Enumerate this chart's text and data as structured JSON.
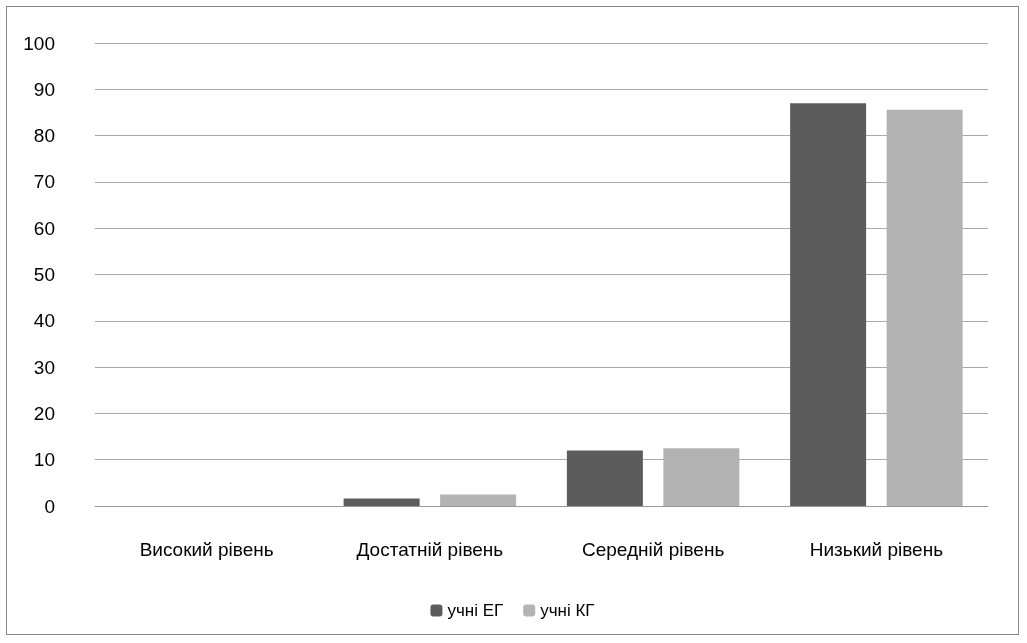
{
  "chart_data": {
    "type": "bar",
    "categories": [
      "Високий рівень",
      "Достатній рівень",
      "Середній рівень",
      "Низький рівень"
    ],
    "series": [
      {
        "name": "учні ЕГ",
        "color": "#5c5c5c",
        "values": [
          0,
          1.6,
          12,
          87
        ]
      },
      {
        "name": "учні КГ",
        "color": "#b3b3b3",
        "values": [
          0,
          2.5,
          12.5,
          85.6
        ]
      }
    ],
    "ylim": [
      0,
      100
    ],
    "yticks": [
      0,
      10,
      20,
      30,
      40,
      50,
      60,
      70,
      80,
      90,
      100
    ],
    "grid": "y",
    "legend": "bottom"
  }
}
